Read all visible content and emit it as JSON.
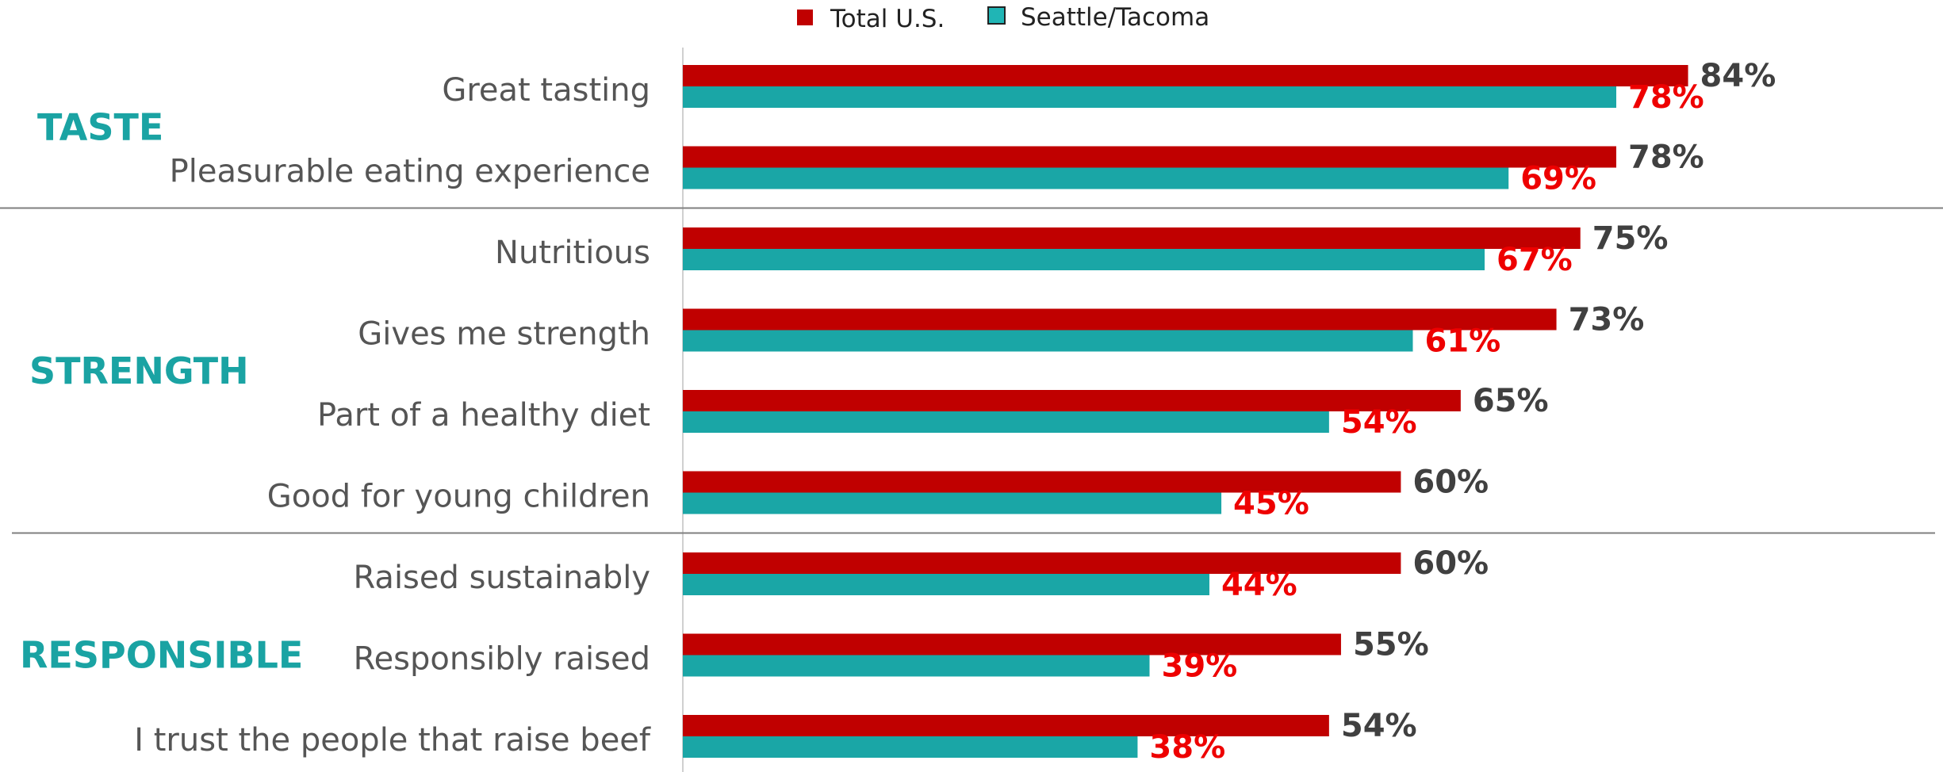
{
  "legend": {
    "total_label": "Total U.S.",
    "seattle_label": "Seattle/Tacoma"
  },
  "groups": [
    {
      "name": "TASTE",
      "first_index": 0,
      "last_index": 1
    },
    {
      "name": "STRENGTH",
      "first_index": 2,
      "last_index": 5
    },
    {
      "name": "RESPONSIBLE",
      "first_index": 6,
      "last_index": 8
    }
  ],
  "colors": {
    "total": "#c00000",
    "seattle": "#1aa6a6",
    "total_value_text": "#404040",
    "seattle_value_text": "#ee0000",
    "group_text": "#1aa3a3"
  },
  "chart_data": {
    "type": "bar",
    "orientation": "horizontal",
    "categories": [
      "Great tasting",
      "Pleasurable eating experience",
      "Nutritious",
      "Gives me strength",
      "Part of a healthy diet",
      "Good for young children",
      "Raised sustainably",
      "Responsibly raised",
      "I trust the people that raise beef"
    ],
    "series": [
      {
        "name": "Total U.S.",
        "values": [
          84,
          78,
          75,
          73,
          65,
          60,
          60,
          55,
          54
        ]
      },
      {
        "name": "Seattle/Tacoma",
        "values": [
          78,
          69,
          67,
          61,
          54,
          45,
          44,
          39,
          38
        ]
      }
    ],
    "value_labels": {
      "total": [
        "84%",
        "78%",
        "75%",
        "73%",
        "65%",
        "60%",
        "60%",
        "55%",
        "54%"
      ],
      "seattle": [
        "78%",
        "69%",
        "67%",
        "61%",
        "54%",
        "45%",
        "44%",
        "39%",
        "38%"
      ]
    },
    "xlim": [
      0,
      100
    ],
    "legend_position": "top-center",
    "grid": false,
    "title": "",
    "xlabel": "",
    "ylabel": ""
  }
}
